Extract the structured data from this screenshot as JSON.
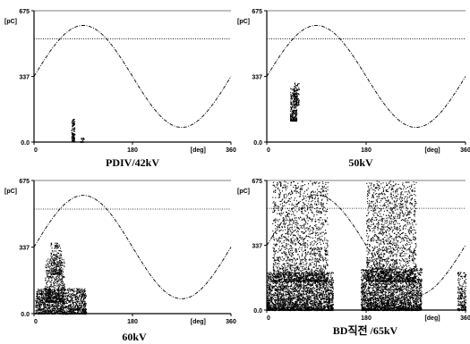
{
  "chart_data": [
    {
      "type": "scatter",
      "caption": "PDIV/42kV",
      "y_unit": "[pC]",
      "x_unit": "[deg]",
      "xlim": [
        0,
        360
      ],
      "ylim": [
        0,
        675
      ],
      "xticks": [
        "0",
        "180",
        "360"
      ],
      "yticks": [
        "0.0",
        "337",
        "675"
      ],
      "threshold_pc": 530,
      "reference": "sine",
      "clusters": [
        {
          "x": [
            68,
            74
          ],
          "y": [
            5,
            120
          ],
          "count": 120
        },
        {
          "x": [
            84,
            92
          ],
          "y": [
            0,
            25
          ],
          "count": 20
        }
      ]
    },
    {
      "type": "scatter",
      "caption": "50kV",
      "y_unit": "[pC]",
      "x_unit": "[deg]",
      "xlim": [
        0,
        360
      ],
      "ylim": [
        0,
        675
      ],
      "xticks": [
        "0",
        "180",
        "360"
      ],
      "yticks": [
        "0.0",
        "337",
        "675"
      ],
      "threshold_pc": 530,
      "reference": "sine",
      "clusters": [
        {
          "x": [
            42,
            54
          ],
          "y": [
            110,
            280
          ],
          "count": 260
        },
        {
          "x": [
            48,
            58
          ],
          "y": [
            190,
            310
          ],
          "count": 100
        }
      ]
    },
    {
      "type": "scatter",
      "caption": "60kV",
      "y_unit": "[pC]",
      "x_unit": "[deg]",
      "xlim": [
        0,
        360
      ],
      "ylim": [
        0,
        675
      ],
      "xticks": [
        "0",
        "180",
        "360"
      ],
      "yticks": [
        "0.0",
        "337",
        "675"
      ],
      "threshold_pc": 530,
      "reference": "sine",
      "clusters": [
        {
          "x": [
            2,
            95
          ],
          "y": [
            0,
            130
          ],
          "count": 1400
        },
        {
          "x": [
            20,
            55
          ],
          "y": [
            60,
            280
          ],
          "count": 500
        },
        {
          "x": [
            30,
            50
          ],
          "y": [
            200,
            360
          ],
          "count": 200
        }
      ]
    },
    {
      "type": "scatter",
      "caption": "BD직전 /65kV",
      "y_unit": "[pC]",
      "x_unit": "[deg]",
      "xlim": [
        0,
        360
      ],
      "ylim": [
        0,
        675
      ],
      "xticks": [
        "0",
        "180",
        "360"
      ],
      "yticks": [
        "0.0",
        "337",
        "675"
      ],
      "threshold_pc": 530,
      "reference": "sine",
      "clusters": [
        {
          "x": [
            0,
            120
          ],
          "y": [
            0,
            200
          ],
          "count": 2600
        },
        {
          "x": [
            10,
            110
          ],
          "y": [
            150,
            675
          ],
          "count": 1700
        },
        {
          "x": [
            170,
            280
          ],
          "y": [
            0,
            220
          ],
          "count": 2600
        },
        {
          "x": [
            180,
            270
          ],
          "y": [
            150,
            675
          ],
          "count": 1700
        },
        {
          "x": [
            345,
            360
          ],
          "y": [
            0,
            200
          ],
          "count": 220
        }
      ]
    }
  ]
}
